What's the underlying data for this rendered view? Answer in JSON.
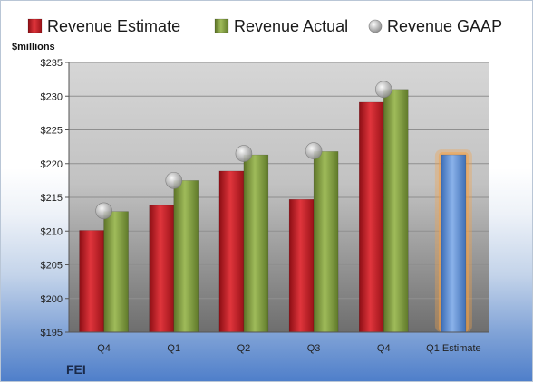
{
  "chart_data": {
    "type": "bar",
    "company": "FEI",
    "ylabel": "$millions",
    "ylim": [
      195,
      235
    ],
    "ytick_step": 5,
    "y_tick_prefix": "$",
    "grid": true,
    "legend_position": "top",
    "categories": [
      "Q4",
      "Q1",
      "Q2",
      "Q3",
      "Q4",
      "Q1 Estimate"
    ],
    "series": [
      {
        "name": "Revenue Estimate",
        "type": "bar",
        "color": "#c8202a",
        "values": [
          210.1,
          213.8,
          218.9,
          214.7,
          229.1,
          null
        ]
      },
      {
        "name": "Revenue Actual",
        "type": "bar",
        "color": "#7f9b3c",
        "values": [
          212.9,
          217.5,
          221.3,
          221.8,
          231.0,
          null
        ]
      },
      {
        "name": "Revenue GAAP",
        "type": "marker",
        "color": "#a9a9a9",
        "values": [
          213.0,
          217.5,
          221.5,
          221.9,
          231.0,
          null
        ]
      },
      {
        "name": "Q1 Estimate",
        "type": "bar",
        "color": "#5b8fd6",
        "highlight": "#f3a24a",
        "values": [
          null,
          null,
          null,
          null,
          null,
          221.3
        ]
      }
    ]
  }
}
